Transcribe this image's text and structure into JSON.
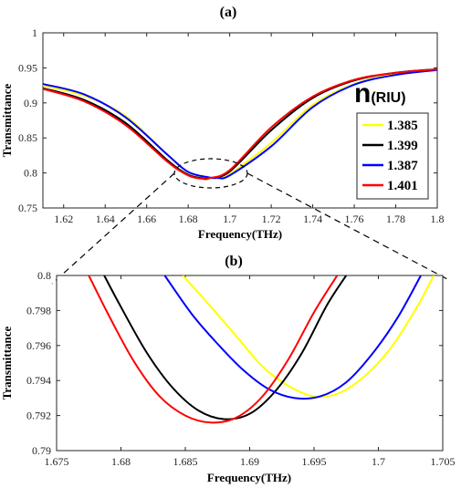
{
  "chart_data": [
    {
      "type": "line",
      "panel_label": "(a)",
      "xlabel": "Frequency(THz)",
      "ylabel": "Transmittance",
      "xlim": [
        1.61,
        1.8
      ],
      "ylim": [
        0.75,
        1.0
      ],
      "xticks": [
        "1.62",
        "1.64",
        "1.66",
        "1.68",
        "1.7",
        "1.72",
        "1.74",
        "1.76",
        "1.78",
        "1.8"
      ],
      "yticks": [
        "0.75",
        "0.8",
        "0.85",
        "0.9",
        "0.95",
        "1"
      ],
      "legend": {
        "title_main": "n",
        "title_sub": "(RIU)",
        "placement": "right"
      },
      "series": [
        {
          "name": "1.385",
          "color": "#ffff00",
          "x": [
            1.61,
            1.63,
            1.65,
            1.67,
            1.68,
            1.69,
            1.695,
            1.7,
            1.72,
            1.74,
            1.76,
            1.78,
            1.8
          ],
          "y": [
            0.925,
            0.91,
            0.881,
            0.826,
            0.801,
            0.7935,
            0.7931,
            0.798,
            0.843,
            0.897,
            0.927,
            0.941,
            0.947
          ]
        },
        {
          "name": "1.399",
          "color": "#000000",
          "x": [
            1.61,
            1.63,
            1.65,
            1.67,
            1.68,
            1.688,
            1.69,
            1.7,
            1.72,
            1.74,
            1.76,
            1.78,
            1.8
          ],
          "y": [
            0.921,
            0.904,
            0.871,
            0.818,
            0.7975,
            0.7918,
            0.7925,
            0.802,
            0.861,
            0.907,
            0.932,
            0.943,
            0.948
          ]
        },
        {
          "name": "1.387",
          "color": "#0000ff",
          "x": [
            1.61,
            1.63,
            1.65,
            1.67,
            1.68,
            1.69,
            1.694,
            1.7,
            1.72,
            1.74,
            1.76,
            1.78,
            1.8
          ],
          "y": [
            0.927,
            0.912,
            0.879,
            0.826,
            0.8015,
            0.7937,
            0.793,
            0.7965,
            0.838,
            0.894,
            0.926,
            0.94,
            0.947
          ]
        },
        {
          "name": "1.401",
          "color": "#ff0000",
          "x": [
            1.61,
            1.63,
            1.65,
            1.67,
            1.68,
            1.687,
            1.69,
            1.7,
            1.72,
            1.74,
            1.76,
            1.78,
            1.8
          ],
          "y": [
            0.92,
            0.902,
            0.868,
            0.816,
            0.7965,
            0.7916,
            0.7925,
            0.804,
            0.865,
            0.909,
            0.933,
            0.943,
            0.948
          ]
        }
      ]
    },
    {
      "type": "line",
      "panel_label": "(b)",
      "xlabel": "Frequency(THz)",
      "ylabel": "Transmittance",
      "xlim": [
        1.675,
        1.705
      ],
      "ylim": [
        0.79,
        0.8
      ],
      "xticks": [
        "1.675",
        "1.68",
        "1.685",
        "1.69",
        "1.695",
        "1.7",
        "1.705"
      ],
      "yticks": [
        "0.79",
        "0.792",
        "0.794",
        "0.796",
        "0.798",
        "0.8"
      ],
      "series": [
        {
          "name": "1.385",
          "color": "#ffff00",
          "x": [
            1.6848,
            1.687,
            1.689,
            1.691,
            1.693,
            1.695,
            1.697,
            1.699,
            1.701,
            1.703,
            1.7043
          ],
          "y": [
            0.8,
            0.7982,
            0.7965,
            0.7948,
            0.7937,
            0.7931,
            0.7933,
            0.7943,
            0.7959,
            0.7982,
            0.8
          ]
        },
        {
          "name": "1.399",
          "color": "#000000",
          "x": [
            1.6787,
            1.68,
            1.682,
            1.684,
            1.686,
            1.688,
            1.69,
            1.692,
            1.694,
            1.696,
            1.6975
          ],
          "y": [
            0.8,
            0.7982,
            0.7956,
            0.7936,
            0.7923,
            0.7918,
            0.7921,
            0.7934,
            0.7955,
            0.7983,
            0.8
          ]
        },
        {
          "name": "1.387",
          "color": "#0000ff",
          "x": [
            1.6834,
            1.6855,
            1.6875,
            1.6895,
            1.6915,
            1.6935,
            1.6955,
            1.6975,
            1.6995,
            1.7015,
            1.7033
          ],
          "y": [
            0.8,
            0.7978,
            0.7961,
            0.7946,
            0.7935,
            0.793,
            0.7931,
            0.7939,
            0.7955,
            0.7976,
            0.8
          ]
        },
        {
          "name": "1.401",
          "color": "#ff0000",
          "x": [
            1.6775,
            1.679,
            1.681,
            1.683,
            1.685,
            1.687,
            1.689,
            1.691,
            1.693,
            1.695,
            1.6968
          ],
          "y": [
            0.8,
            0.7978,
            0.7951,
            0.7931,
            0.792,
            0.7916,
            0.7919,
            0.7931,
            0.7952,
            0.7979,
            0.8
          ]
        }
      ]
    }
  ]
}
